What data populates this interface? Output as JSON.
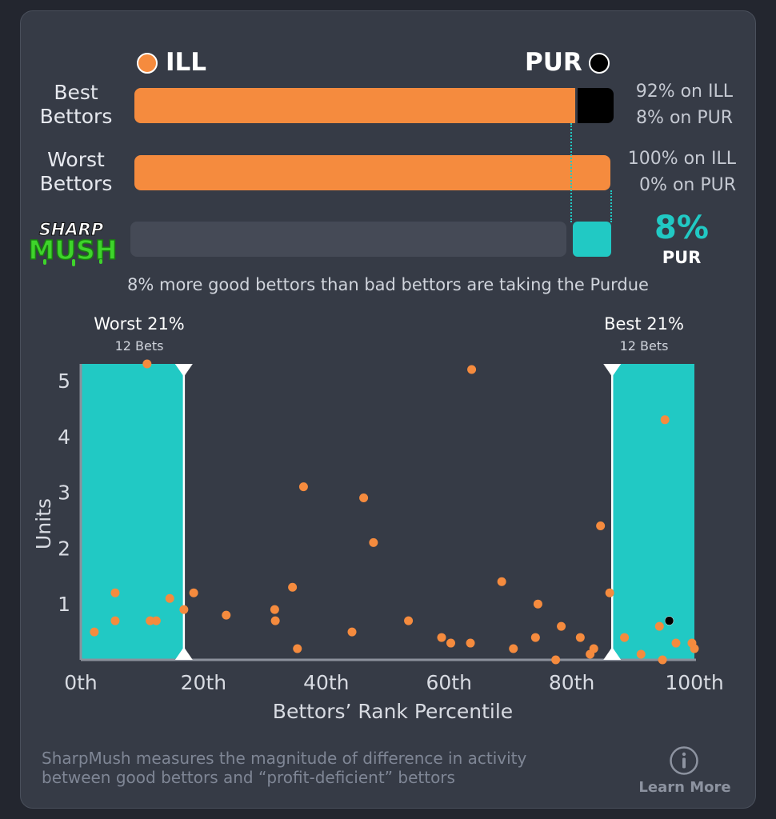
{
  "header": {
    "team_left": "ILL",
    "team_right": "PUR",
    "color_left": "#f58b3e",
    "color_right": "#000000"
  },
  "bars": [
    {
      "label_line1": "Best",
      "label_line2": "Bettors",
      "ill_pct": 92,
      "pur_pct": 8,
      "text_line1": "92% on ILL",
      "text_line2": "8% on PUR"
    },
    {
      "label_line1": "Worst",
      "label_line2": "Bettors",
      "ill_pct": 100,
      "pur_pct": 0,
      "text_line1": "100% on ILL",
      "text_line2": "0% on PUR"
    }
  ],
  "sharpmush": {
    "logo_line1": "SHARP",
    "logo_line2": "MUSH",
    "value_pct": 8,
    "value_text": "8%",
    "team": "PUR",
    "accent": "#21c9c4"
  },
  "summary_text": "8% more good bettors than bad bettors are taking the Purdue",
  "zones": {
    "worst_title": "Worst 21%",
    "worst_bets": "12 Bets",
    "best_title": "Best 21%",
    "best_bets": "12 Bets"
  },
  "chart_data": {
    "type": "scatter",
    "xlabel": "Bettors’ Rank Percentile",
    "ylabel": "Units",
    "xlim": [
      0,
      100
    ],
    "ylim": [
      0,
      5.3
    ],
    "x_ticks": [
      0,
      20,
      40,
      60,
      80,
      100
    ],
    "x_tick_labels": [
      "0th",
      "20th",
      "40th",
      "60th",
      "80th",
      "100th"
    ],
    "y_ticks": [
      1,
      2,
      3,
      4,
      5
    ],
    "y_tick_labels": [
      "1",
      "2",
      "3",
      "4",
      "5"
    ],
    "shaded_ranges": [
      [
        0,
        16.8
      ],
      [
        86.6,
        100
      ]
    ],
    "series": [
      {
        "color": "#f58b3e",
        "points": [
          [
            2.2,
            0.5
          ],
          [
            5.6,
            1.2
          ],
          [
            5.6,
            0.7
          ],
          [
            10.8,
            5.3
          ],
          [
            11.3,
            0.7
          ],
          [
            12.3,
            0.7
          ],
          [
            14.5,
            1.1
          ],
          [
            16.8,
            0.9
          ],
          [
            18.4,
            1.2
          ],
          [
            23.7,
            0.8
          ],
          [
            31.6,
            0.9
          ],
          [
            31.7,
            0.7
          ],
          [
            34.5,
            1.3
          ],
          [
            35.3,
            0.2
          ],
          [
            36.3,
            3.1
          ],
          [
            44.2,
            0.5
          ],
          [
            46.1,
            2.9
          ],
          [
            47.7,
            2.1
          ],
          [
            53.4,
            0.7
          ],
          [
            58.8,
            0.4
          ],
          [
            60.3,
            0.3
          ],
          [
            63.7,
            5.2
          ],
          [
            63.5,
            0.3
          ],
          [
            68.6,
            1.4
          ],
          [
            70.5,
            0.2
          ],
          [
            74.5,
            1.0
          ],
          [
            74.1,
            0.4
          ],
          [
            77.4,
            0.0
          ],
          [
            78.3,
            0.6
          ],
          [
            81.4,
            0.4
          ],
          [
            83.0,
            0.1
          ],
          [
            83.6,
            0.2
          ],
          [
            84.7,
            2.4
          ],
          [
            86.2,
            1.2
          ],
          [
            88.6,
            0.4
          ],
          [
            91.3,
            0.1
          ],
          [
            94.3,
            0.6
          ],
          [
            94.8,
            0.0
          ],
          [
            95.2,
            4.3
          ],
          [
            97.0,
            0.3
          ],
          [
            99.6,
            0.3
          ],
          [
            100.0,
            0.2
          ]
        ]
      },
      {
        "color": "#000000",
        "points": [
          [
            95.9,
            0.7
          ]
        ]
      }
    ]
  },
  "footer": {
    "line1": "SharpMush measures the magnitude of difference in activity",
    "line2": "between good bettors and “profit-deficient” bettors",
    "learn_more": "Learn More"
  }
}
